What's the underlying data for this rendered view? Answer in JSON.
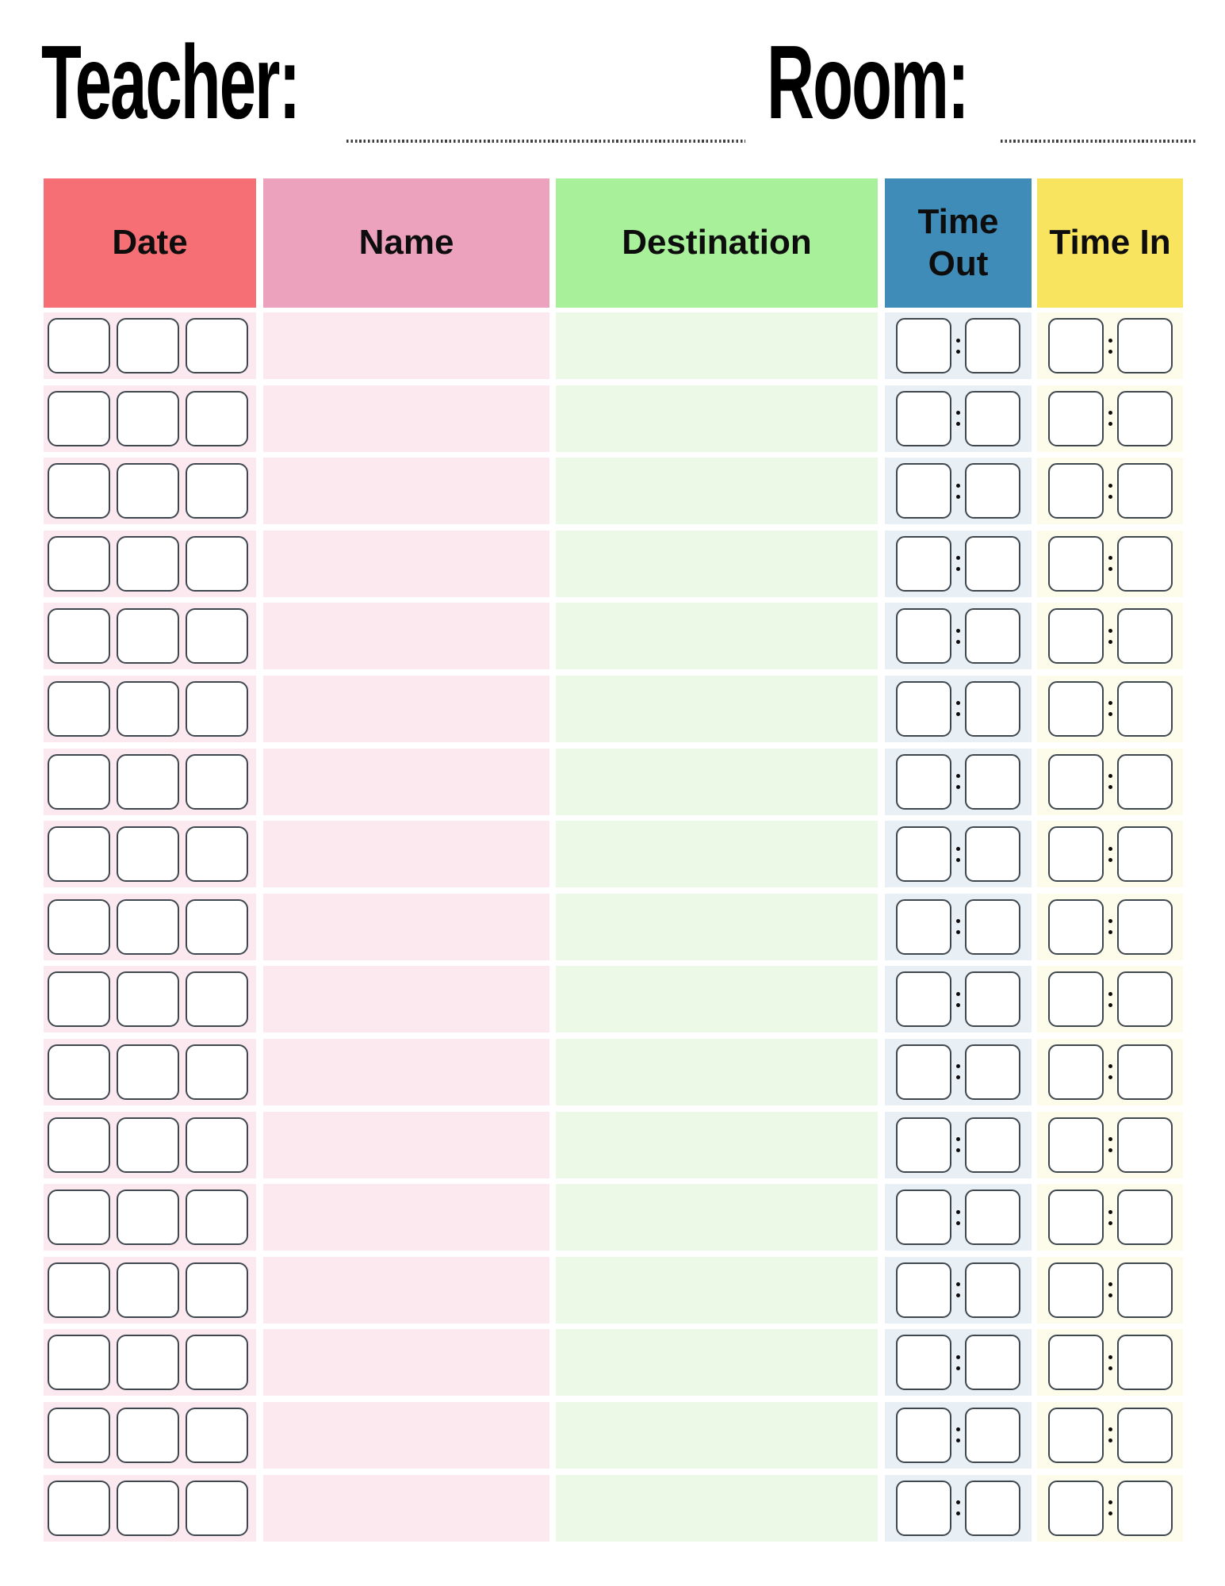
{
  "title": {
    "teacher_label": "Teacher:",
    "room_label": "Room:"
  },
  "table": {
    "row_count": 17,
    "columns": [
      {
        "key": "date",
        "label": "Date",
        "type": "date-boxes",
        "box_count": 3,
        "header_bg": "#f56f74",
        "body_bg": "#fbe9ef"
      },
      {
        "key": "name",
        "label": "Name",
        "type": "blank",
        "header_bg": "#eca2bc",
        "body_bg": "#fbe9ef"
      },
      {
        "key": "destination",
        "label": "Destination",
        "type": "blank",
        "header_bg": "#a8f099",
        "body_bg": "#ecf9e7"
      },
      {
        "key": "time_out",
        "label": "Time Out",
        "type": "time-boxes",
        "header_bg": "#3f8cb8",
        "body_bg": "#e8f0f6"
      },
      {
        "key": "time_in",
        "label": "Time In",
        "type": "time-boxes",
        "header_bg": "#f9e45f",
        "body_bg": "#fdfbe9"
      }
    ]
  },
  "colors": {
    "page_bg": "#ffffff",
    "box_border": "#3e464e",
    "dotted_line": "#3f3f3f",
    "header_text": "#0d0d0d",
    "colon_dot": "#0b0b0b"
  }
}
